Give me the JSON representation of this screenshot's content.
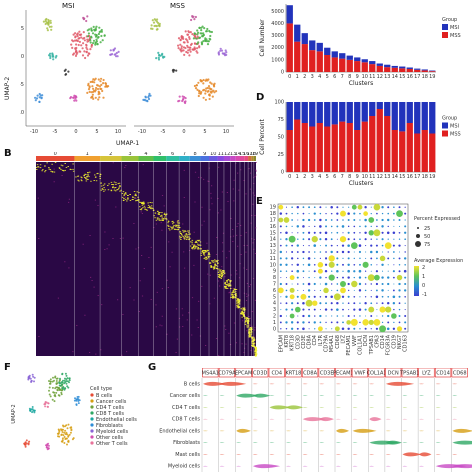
{
  "panels": {
    "A": {
      "label": "",
      "titles": [
        "MSI",
        "MSS"
      ],
      "xlabel": "UMAP-1",
      "ylabel": "UMAP-2",
      "xticks": [
        "-10",
        "-5",
        "0",
        "5",
        "10",
        "-10",
        "-5",
        "0",
        "5",
        "10"
      ],
      "yticks": [
        "5",
        "0",
        "-5",
        "-10"
      ]
    },
    "B": {
      "label": "B"
    },
    "C": {
      "label": ""
    },
    "D": {
      "label": "D"
    },
    "E": {
      "label": "E"
    },
    "F": {
      "label": "F"
    },
    "G": {
      "label": "G"
    }
  },
  "chart_data": [
    {
      "type": "bar",
      "id": "C",
      "title": "",
      "xlabel": "Clusters",
      "ylabel": "Cell Number",
      "categories": [
        "0",
        "1",
        "2",
        "3",
        "4",
        "5",
        "6",
        "7",
        "8",
        "9",
        "10",
        "11",
        "12",
        "13",
        "14",
        "15",
        "16",
        "17",
        "18",
        "19"
      ],
      "yticks": [
        "5000",
        "4000",
        "3000",
        "2000",
        "1000",
        "0"
      ],
      "ylim": [
        0,
        5600
      ],
      "stacked": true,
      "legend_title": "Group",
      "legend_position": "right",
      "series": [
        {
          "name": "MSI",
          "color": "#2233bb",
          "values": [
            1500,
            1400,
            900,
            800,
            700,
            600,
            500,
            450,
            350,
            300,
            250,
            250,
            200,
            200,
            150,
            150,
            120,
            100,
            80,
            50
          ]
        },
        {
          "name": "MSS",
          "color": "#e02020",
          "values": [
            4000,
            2500,
            2300,
            1800,
            1700,
            1400,
            1200,
            1100,
            1000,
            900,
            800,
            650,
            500,
            400,
            350,
            300,
            250,
            180,
            130,
            70
          ]
        }
      ]
    },
    {
      "type": "bar",
      "id": "D",
      "title": "",
      "xlabel": "Clusters",
      "ylabel": "Cell Percent",
      "categories": [
        "0",
        "1",
        "2",
        "3",
        "4",
        "5",
        "6",
        "7",
        "8",
        "9",
        "10",
        "11",
        "12",
        "13",
        "14",
        "15",
        "16",
        "17",
        "18",
        "19"
      ],
      "yticks": [
        "100",
        "75",
        "50",
        "25",
        "0"
      ],
      "ylim": [
        0,
        100
      ],
      "stacked": true,
      "legend_title": "Group",
      "legend_position": "right",
      "series": [
        {
          "name": "MSI",
          "color": "#2233bb",
          "values": [
            40,
            25,
            30,
            35,
            30,
            35,
            32,
            28,
            30,
            40,
            28,
            20,
            10,
            20,
            40,
            42,
            30,
            45,
            40,
            45
          ]
        },
        {
          "name": "MSS",
          "color": "#e02020",
          "values": [
            60,
            75,
            70,
            65,
            70,
            65,
            68,
            72,
            70,
            60,
            72,
            80,
            90,
            80,
            60,
            58,
            70,
            55,
            60,
            55
          ]
        }
      ]
    },
    {
      "type": "heatmap",
      "id": "B",
      "title": "",
      "clusters": [
        "0",
        "1",
        "2",
        "3",
        "4",
        "5",
        "6",
        "7",
        "8",
        "9",
        "10",
        "11",
        "12",
        "13",
        "14",
        "15",
        "16",
        "17",
        "18",
        "19"
      ],
      "color_low": "#2a0845",
      "color_mid": "#a02a8a",
      "color_high": "#f2f230"
    },
    {
      "type": "scatter",
      "id": "E",
      "title": "",
      "legend_title_size": "Percent Expressed",
      "legend_title_color": "Average Expression",
      "size_legend": [
        "25",
        "50",
        "75"
      ],
      "color_legend": [
        "2",
        "1",
        "0",
        "-1"
      ],
      "rows": [
        "19",
        "18",
        "17",
        "16",
        "15",
        "14",
        "13",
        "12",
        "11",
        "10",
        "9",
        "8",
        "7",
        "6",
        "5",
        "4",
        "3",
        "2",
        "1",
        "0"
      ],
      "genes": [
        "EPCAM",
        "KRT8",
        "KRT18",
        "CD3D",
        "CD3E",
        "CD8A",
        "CD4",
        "IL7R",
        "CD79A",
        "MS4A1",
        "CD68",
        "LYZ",
        "PECAM1",
        "VWF",
        "COL1A1",
        "DCN",
        "TPSAB1",
        "CPA3",
        "CD14",
        "FCGR3A",
        "CD19",
        "NKG7",
        "CD163"
      ]
    },
    {
      "type": "scatter",
      "id": "F",
      "title": "",
      "xlabel": "UMAP-1",
      "ylabel": "UMAP-2",
      "legend_title": "Cell type",
      "legend_position": "right",
      "series": [
        {
          "name": "B cells",
          "color": "#e64b35"
        },
        {
          "name": "Cancer cells",
          "color": "#d69e12"
        },
        {
          "name": "CD4 T cells",
          "color": "#6fa13a"
        },
        {
          "name": "CD8 T cells",
          "color": "#2ea864"
        },
        {
          "name": "Endothelial cells",
          "color": "#1aa7a0"
        },
        {
          "name": "Fibroblasts",
          "color": "#2f8dd6"
        },
        {
          "name": "Myeloid cells",
          "color": "#8a64d6"
        },
        {
          "name": "Other cells",
          "color": "#d24fb0"
        },
        {
          "name": "Other T cells",
          "color": "#e8739a"
        }
      ]
    },
    {
      "type": "other",
      "id": "G",
      "title": "",
      "genes": [
        "MS4A1",
        "CD79A",
        "EPCAM",
        "CD3D",
        "CD4",
        "KRT18",
        "CD8A",
        "CD3E",
        "PECAM1",
        "VWF",
        "COL1A1",
        "DCN",
        "TPSAB1",
        "LYZ",
        "CD14",
        "CD68"
      ],
      "cell_types": [
        "B cells",
        "Cancer cells",
        "CD4 T cells",
        "CD8 T cells",
        "Endothelial cells",
        "Fibroblasts",
        "Mast cells",
        "Myeloid cells"
      ]
    }
  ]
}
